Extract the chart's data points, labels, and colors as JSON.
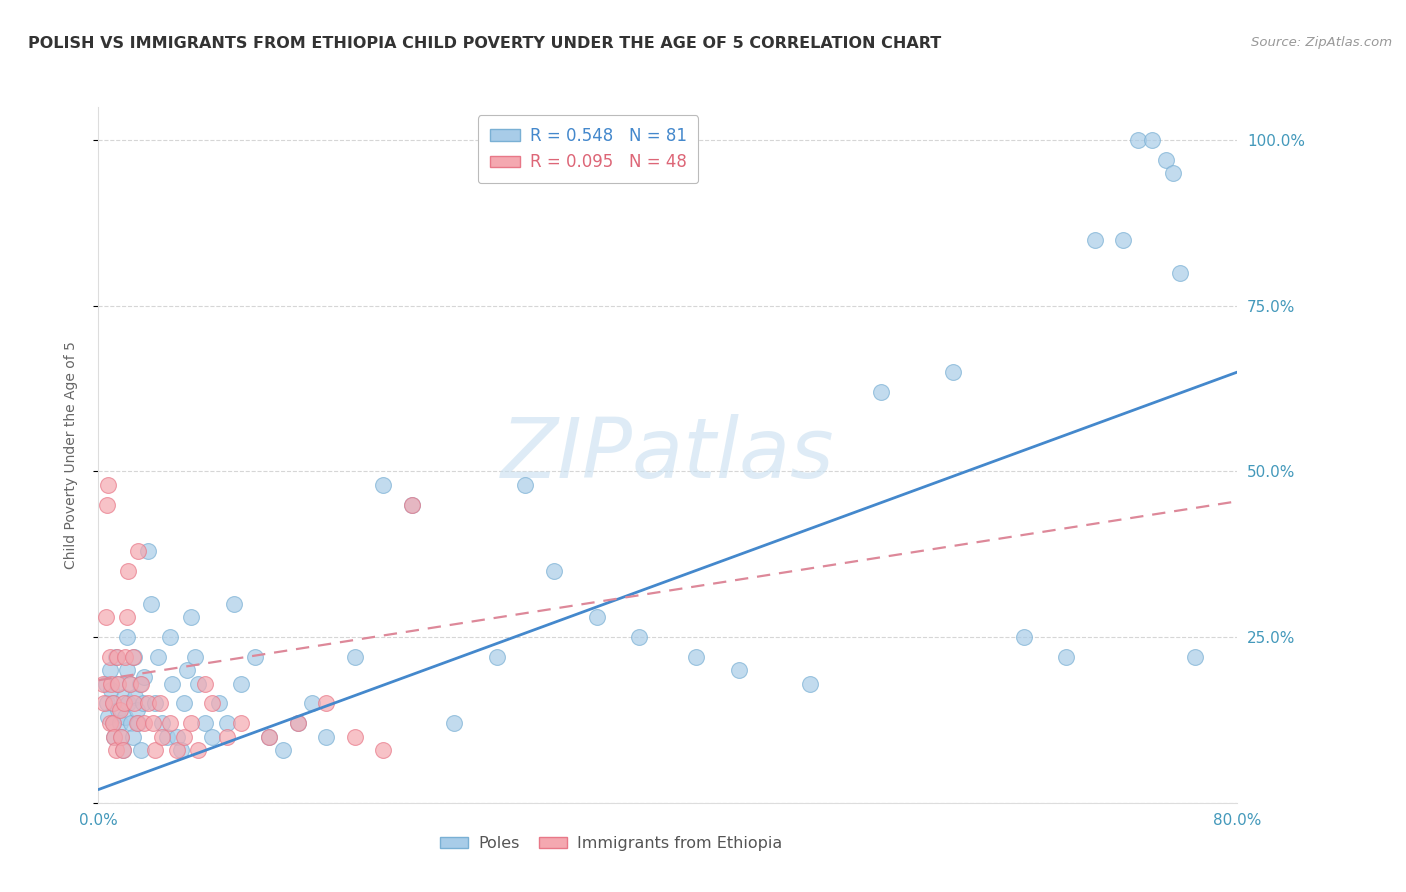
{
  "title": "POLISH VS IMMIGRANTS FROM ETHIOPIA CHILD POVERTY UNDER THE AGE OF 5 CORRELATION CHART",
  "source": "Source: ZipAtlas.com",
  "ylabel_label": "Child Poverty Under the Age of 5",
  "poles_color": "#a8cce8",
  "poles_edge_color": "#7ab0d4",
  "ethiopia_color": "#f4a8b0",
  "ethiopia_edge_color": "#e87888",
  "poles_line_color": "#4488cc",
  "ethiopia_line_color": "#dd8899",
  "watermark_color": "#c8dff0",
  "bg_color": "#ffffff",
  "grid_color": "#cccccc",
  "legend_blue_text": "#4488cc",
  "legend_pink_text": "#dd6677",
  "axis_tick_color": "#4499bb",
  "ylabel_color": "#666666",
  "title_color": "#333333",
  "source_color": "#999999",
  "poles_R": "0.548",
  "poles_N": "81",
  "ethiopia_R": "0.095",
  "ethiopia_N": "48",
  "poles_scatter_x": [
    0.005,
    0.006,
    0.007,
    0.008,
    0.009,
    0.01,
    0.01,
    0.011,
    0.012,
    0.013,
    0.014,
    0.015,
    0.016,
    0.017,
    0.018,
    0.019,
    0.02,
    0.02,
    0.021,
    0.022,
    0.023,
    0.024,
    0.025,
    0.026,
    0.027,
    0.028,
    0.029,
    0.03,
    0.031,
    0.032,
    0.035,
    0.037,
    0.04,
    0.042,
    0.045,
    0.048,
    0.05,
    0.052,
    0.055,
    0.058,
    0.06,
    0.062,
    0.065,
    0.068,
    0.07,
    0.075,
    0.08,
    0.085,
    0.09,
    0.095,
    0.1,
    0.11,
    0.12,
    0.13,
    0.14,
    0.15,
    0.16,
    0.18,
    0.2,
    0.22,
    0.25,
    0.28,
    0.3,
    0.32,
    0.35,
    0.38,
    0.42,
    0.45,
    0.5,
    0.55,
    0.6,
    0.65,
    0.68,
    0.7,
    0.72,
    0.73,
    0.74,
    0.75,
    0.755,
    0.76,
    0.77
  ],
  "poles_scatter_y": [
    0.18,
    0.15,
    0.13,
    0.2,
    0.17,
    0.15,
    0.12,
    0.1,
    0.22,
    0.18,
    0.14,
    0.12,
    0.1,
    0.08,
    0.16,
    0.13,
    0.2,
    0.25,
    0.15,
    0.18,
    0.12,
    0.1,
    0.22,
    0.16,
    0.14,
    0.12,
    0.18,
    0.08,
    0.15,
    0.19,
    0.38,
    0.3,
    0.15,
    0.22,
    0.12,
    0.1,
    0.25,
    0.18,
    0.1,
    0.08,
    0.15,
    0.2,
    0.28,
    0.22,
    0.18,
    0.12,
    0.1,
    0.15,
    0.12,
    0.3,
    0.18,
    0.22,
    0.1,
    0.08,
    0.12,
    0.15,
    0.1,
    0.22,
    0.48,
    0.45,
    0.12,
    0.22,
    0.48,
    0.35,
    0.28,
    0.25,
    0.22,
    0.2,
    0.18,
    0.62,
    0.65,
    0.25,
    0.22,
    0.85,
    0.85,
    1.0,
    1.0,
    0.97,
    0.95,
    0.8,
    0.22
  ],
  "ethiopia_scatter_x": [
    0.003,
    0.004,
    0.005,
    0.006,
    0.007,
    0.008,
    0.008,
    0.009,
    0.01,
    0.01,
    0.011,
    0.012,
    0.013,
    0.014,
    0.015,
    0.016,
    0.017,
    0.018,
    0.019,
    0.02,
    0.021,
    0.022,
    0.024,
    0.025,
    0.027,
    0.028,
    0.03,
    0.032,
    0.035,
    0.038,
    0.04,
    0.043,
    0.045,
    0.05,
    0.055,
    0.06,
    0.065,
    0.07,
    0.075,
    0.08,
    0.09,
    0.1,
    0.12,
    0.14,
    0.16,
    0.18,
    0.2,
    0.22
  ],
  "ethiopia_scatter_y": [
    0.18,
    0.15,
    0.28,
    0.45,
    0.48,
    0.12,
    0.22,
    0.18,
    0.15,
    0.12,
    0.1,
    0.08,
    0.22,
    0.18,
    0.14,
    0.1,
    0.08,
    0.15,
    0.22,
    0.28,
    0.35,
    0.18,
    0.22,
    0.15,
    0.12,
    0.38,
    0.18,
    0.12,
    0.15,
    0.12,
    0.08,
    0.15,
    0.1,
    0.12,
    0.08,
    0.1,
    0.12,
    0.08,
    0.18,
    0.15,
    0.1,
    0.12,
    0.1,
    0.12,
    0.15,
    0.1,
    0.08,
    0.45
  ],
  "poles_line_x": [
    0.0,
    0.8
  ],
  "poles_line_y": [
    0.02,
    0.65
  ],
  "ethiopia_line_x": [
    0.0,
    0.22
  ],
  "ethiopia_line_y": [
    0.18,
    0.27
  ],
  "xlim": [
    0.0,
    0.8
  ],
  "ylim": [
    0.0,
    1.05
  ],
  "xlim_display": [
    0.0,
    0.8
  ],
  "ylim_ticks": [
    0.25,
    0.5,
    0.75,
    1.0
  ],
  "xlim_ticks": [
    0.0,
    0.8
  ]
}
